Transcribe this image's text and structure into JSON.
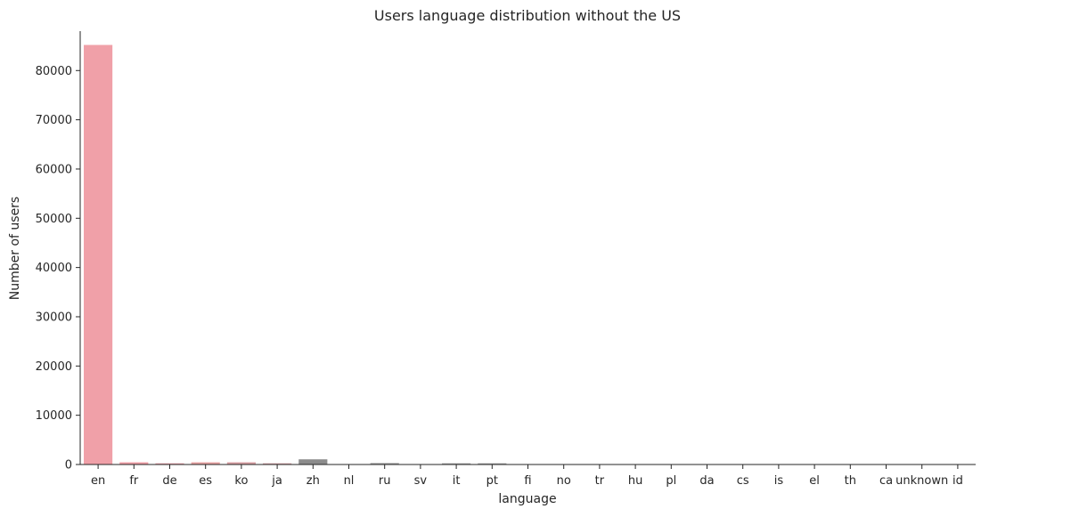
{
  "chart_data": {
    "type": "bar",
    "title": "Users language distribution without the US",
    "xlabel": "language",
    "ylabel": "Number of users",
    "ylim": [
      0,
      88000
    ],
    "yticks": [
      0,
      10000,
      20000,
      30000,
      40000,
      50000,
      60000,
      70000,
      80000
    ],
    "grid": false,
    "categories": [
      "en",
      "fr",
      "de",
      "es",
      "ko",
      "ja",
      "zh",
      "nl",
      "ru",
      "sv",
      "it",
      "pt",
      "fi",
      "no",
      "tr",
      "hu",
      "pl",
      "da",
      "cs",
      "is",
      "el",
      "th",
      "ca",
      "unknown",
      "id"
    ],
    "values": [
      85200,
      450,
      250,
      450,
      450,
      250,
      1050,
      20,
      300,
      30,
      250,
      250,
      20,
      20,
      20,
      20,
      20,
      20,
      20,
      20,
      20,
      20,
      10,
      10,
      10
    ],
    "colors": [
      "#f0a0a8",
      "#f0a0a8",
      "#e6a0a8",
      "#e8a4a4",
      "#d8a0a4",
      "#d0a0a4",
      "#8c8c8c",
      "#b8b8b8",
      "#a0a0a0",
      "#b0b0b0",
      "#a0a0a0",
      "#a0a0a0",
      "#b0b0b0",
      "#b0b0b0",
      "#b0b0b0",
      "#b0b0b0",
      "#b0b0b0",
      "#b0b0b0",
      "#b0b0b0",
      "#b0b0b0",
      "#b0b0b0",
      "#b0b0b0",
      "#b0b0b0",
      "#b0b0b0",
      "#b0b0b0"
    ]
  }
}
